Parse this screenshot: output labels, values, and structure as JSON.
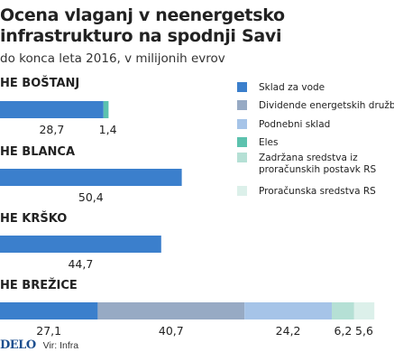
{
  "chart_data": {
    "type": "bar",
    "stacked": true,
    "orientation": "horizontal",
    "title": "Ocena vlaganj v neenergetsko infrastrukturo na spodnji Savi",
    "subtitle": "do konca leta 2016, v milijonih evrov",
    "categories": [
      "HE BOŠTANJ",
      "HE BLANCA",
      "HE KRŠKO",
      "HE BREŽICE"
    ],
    "series": [
      {
        "name": "Sklad za vode",
        "color": "#3b7fcc",
        "values": [
          28.7,
          50.4,
          44.7,
          27.1
        ]
      },
      {
        "name": "Dividende energetskih družb",
        "color": "#97aac4",
        "values": [
          0,
          0,
          0,
          40.7
        ]
      },
      {
        "name": "Podnebni sklad",
        "color": "#a6c4e8",
        "values": [
          0,
          0,
          0,
          24.2
        ]
      },
      {
        "name": "Eles",
        "color": "#5cc2ae",
        "values": [
          1.4,
          0,
          0,
          0
        ]
      },
      {
        "name": "Zadržana sredstva iz proračunskih postavk RS",
        "color": "#b5e0d5",
        "values": [
          0,
          0,
          0,
          6.2
        ]
      },
      {
        "name": "Proračunska sredstva RS",
        "color": "#dcf0ea",
        "values": [
          0,
          0,
          0,
          5.6
        ]
      }
    ],
    "value_labels": [
      [
        "28,7",
        "1,4"
      ],
      [
        "50,4"
      ],
      [
        "44,7"
      ],
      [
        "40,7",
        "27,1",
        "24,2",
        "6,2",
        "5,6"
      ]
    ],
    "legend_position": "right",
    "grid": false
  },
  "legend_lines": [
    [
      "Sklad za vode"
    ],
    [
      "Dividende energetskih družb"
    ],
    [
      "Podnebni sklad"
    ],
    [
      "Eles"
    ],
    [
      "Zadržana sredstva iz",
      "proračunskih postavk RS"
    ],
    [
      "Proračunska sredstva RS"
    ]
  ],
  "footer": {
    "logo": "DELO",
    "source": "Vir: Infra"
  }
}
